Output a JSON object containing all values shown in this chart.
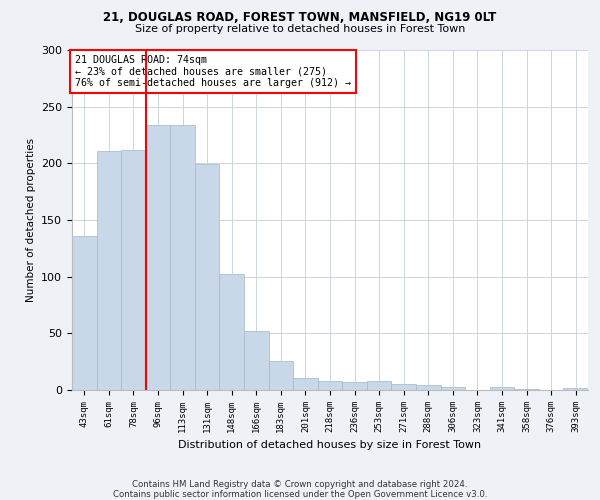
{
  "title1": "21, DOUGLAS ROAD, FOREST TOWN, MANSFIELD, NG19 0LT",
  "title2": "Size of property relative to detached houses in Forest Town",
  "xlabel": "Distribution of detached houses by size in Forest Town",
  "ylabel": "Number of detached properties",
  "categories": [
    "43sqm",
    "61sqm",
    "78sqm",
    "96sqm",
    "113sqm",
    "131sqm",
    "148sqm",
    "166sqm",
    "183sqm",
    "201sqm",
    "218sqm",
    "236sqm",
    "253sqm",
    "271sqm",
    "288sqm",
    "306sqm",
    "323sqm",
    "341sqm",
    "358sqm",
    "376sqm",
    "393sqm"
  ],
  "values": [
    136,
    211,
    212,
    234,
    234,
    199,
    102,
    52,
    26,
    11,
    8,
    7,
    8,
    5,
    4,
    3,
    0,
    3,
    1,
    0,
    2
  ],
  "bar_color": "#c8d8e8",
  "bar_edge_color": "#a0b8cc",
  "vline_x": 2.5,
  "vline_color": "red",
  "annotation_text": "21 DOUGLAS ROAD: 74sqm\n← 23% of detached houses are smaller (275)\n76% of semi-detached houses are larger (912) →",
  "annotation_box_color": "white",
  "annotation_box_edge_color": "red",
  "ylim": [
    0,
    300
  ],
  "yticks": [
    0,
    50,
    100,
    150,
    200,
    250,
    300
  ],
  "footnote": "Contains HM Land Registry data © Crown copyright and database right 2024.\nContains public sector information licensed under the Open Government Licence v3.0.",
  "bg_color": "#eef2f7",
  "plot_bg_color": "#ffffff"
}
